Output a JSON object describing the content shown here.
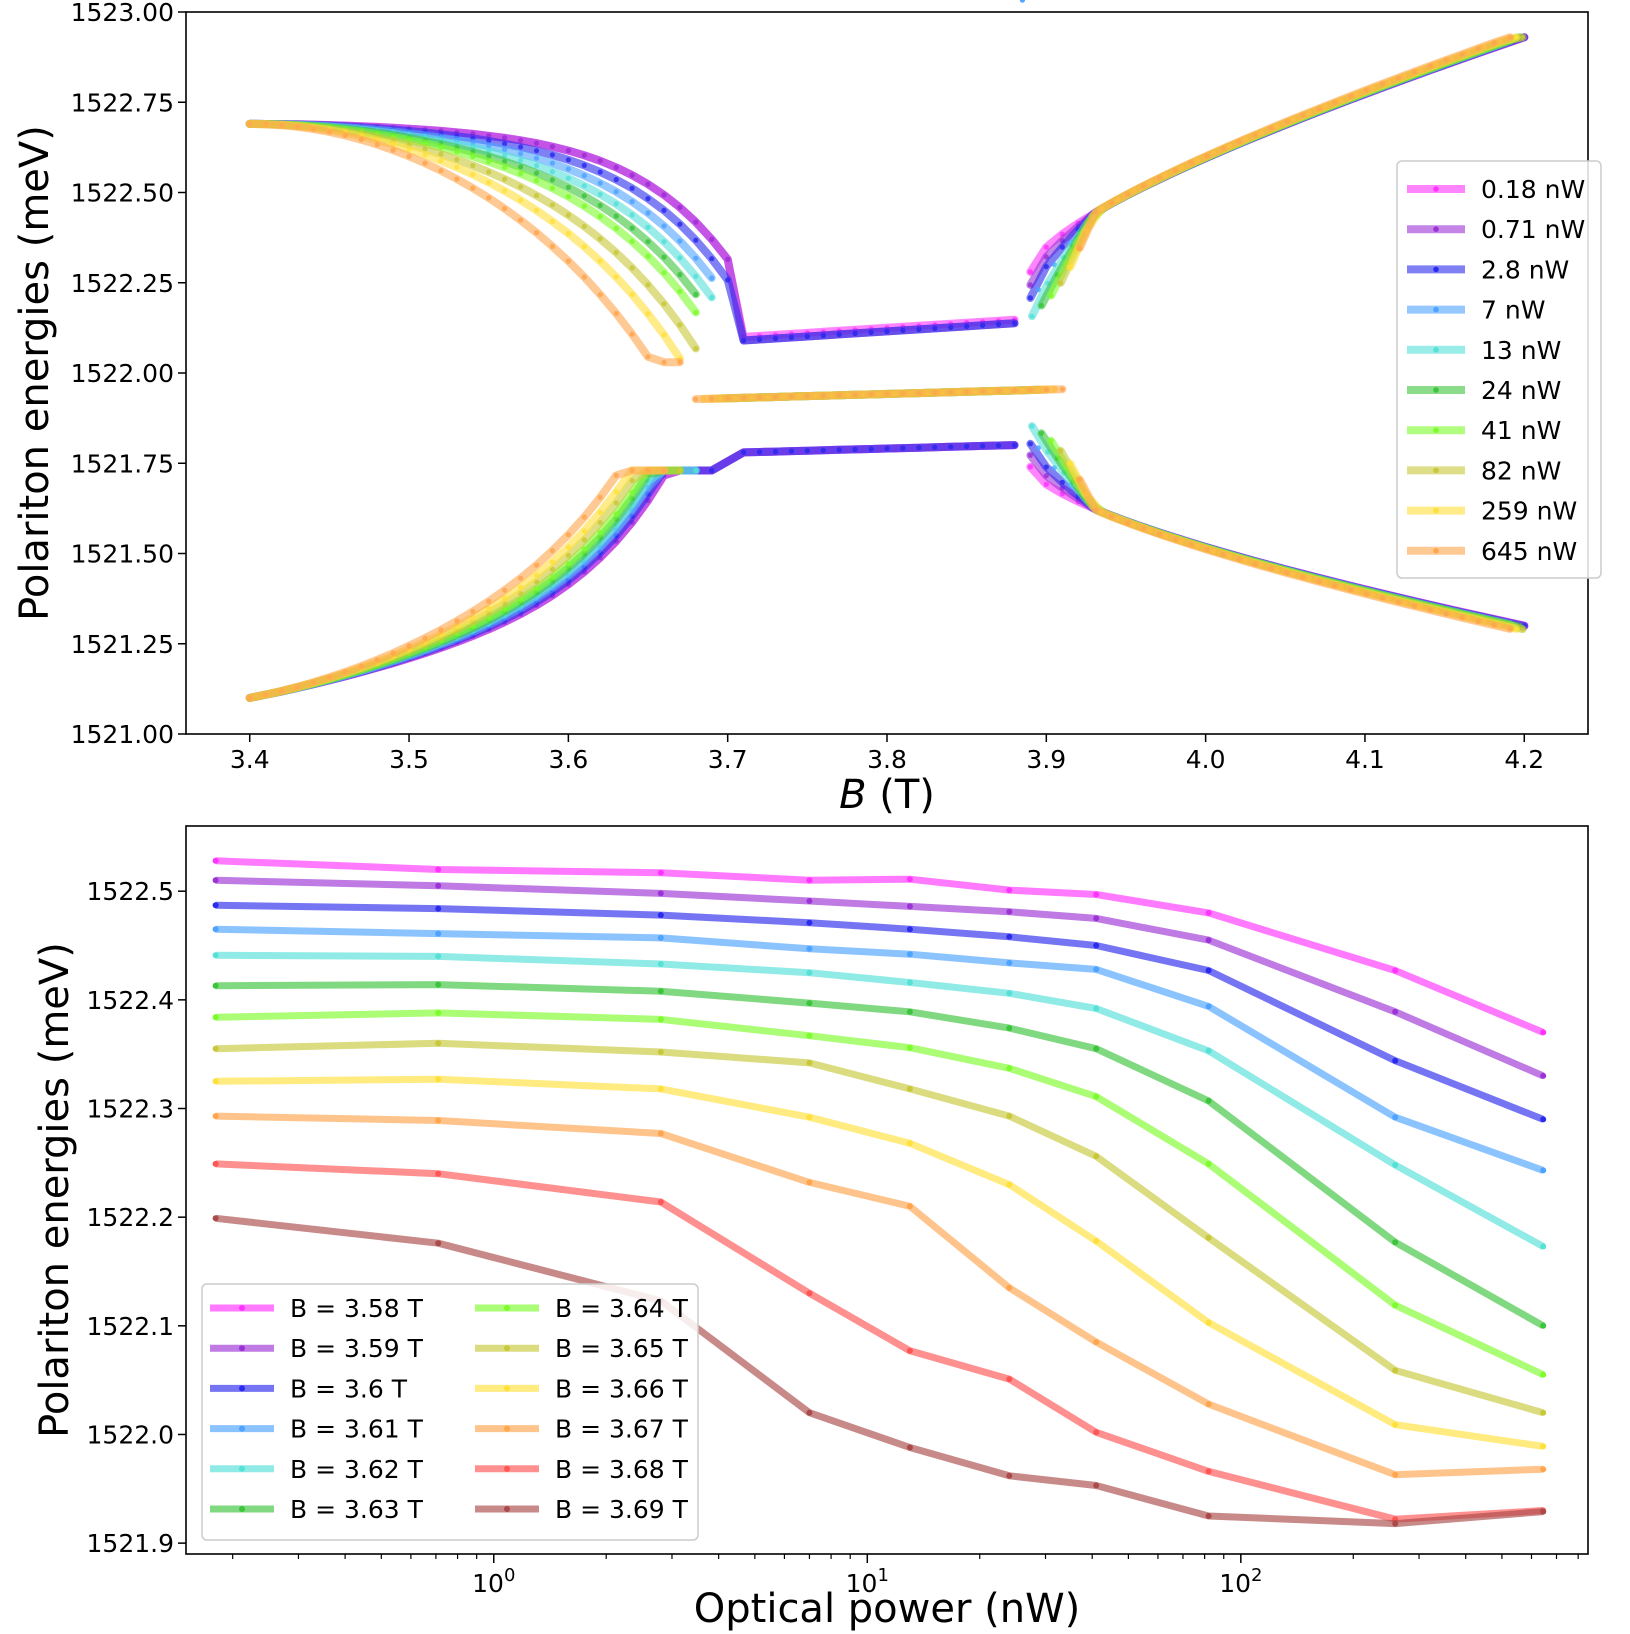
{
  "chart_data": [
    {
      "type": "line",
      "xlabel": "B (T)",
      "ylabel": "Polariton energies (meV)",
      "xlim": [
        3.36,
        4.24
      ],
      "ylim": [
        1521.0,
        1523.0
      ],
      "xticks": [
        "3.4",
        "3.5",
        "3.6",
        "3.7",
        "3.8",
        "3.9",
        "4.0",
        "4.1",
        "4.2"
      ],
      "yticks": [
        "1521.00",
        "1521.25",
        "1521.50",
        "1521.75",
        "1522.00",
        "1522.25",
        "1522.50",
        "1522.75",
        "1523.00"
      ],
      "legend_position": "right",
      "series": [
        {
          "name": "0.18 nW",
          "color": "#ff33ff",
          "transition": 3.705,
          "shift": 0.0
        },
        {
          "name": "0.71 nW",
          "color": "#9c33d6",
          "transition": 3.705,
          "shift": 0.0
        },
        {
          "name": "2.8 nW",
          "color": "#2b2bee",
          "transition": 3.7,
          "shift": 0.005
        },
        {
          "name": "7 nW",
          "color": "#4da3ff",
          "transition": 3.695,
          "shift": 0.01
        },
        {
          "name": "13 nW",
          "color": "#55e0d8",
          "transition": 3.69,
          "shift": 0.015
        },
        {
          "name": "24 nW",
          "color": "#3cc43c",
          "transition": 3.685,
          "shift": 0.02
        },
        {
          "name": "41 nW",
          "color": "#7cfc2a",
          "transition": 3.685,
          "shift": 0.025
        },
        {
          "name": "82 nW",
          "color": "#c8c83a",
          "transition": 3.68,
          "shift": 0.035
        },
        {
          "name": "259 nW",
          "color": "#ffe03a",
          "transition": 3.675,
          "shift": 0.045
        },
        {
          "name": "645 nW",
          "color": "#ffa54d",
          "transition": 3.67,
          "shift": 0.06
        }
      ]
    },
    {
      "type": "line",
      "xlabel": "Optical power (nW)",
      "ylabel": "Polariton energies (meV)",
      "xscale": "log",
      "xlim": [
        0.15,
        850
      ],
      "ylim": [
        1521.89,
        1522.56
      ],
      "xticks": [
        {
          "base": "10",
          "exp": "0",
          "value": 1
        },
        {
          "base": "10",
          "exp": "1",
          "value": 10
        },
        {
          "base": "10",
          "exp": "2",
          "value": 100
        }
      ],
      "yticks": [
        "1521.9",
        "1522.0",
        "1522.1",
        "1522.2",
        "1522.3",
        "1522.4",
        "1522.5"
      ],
      "legend_position": "lower left",
      "x": [
        0.18,
        0.71,
        2.8,
        7,
        13,
        24,
        41,
        82,
        259,
        645
      ],
      "series": [
        {
          "name": "B = 3.58 T",
          "color": "#ff33ff",
          "values": [
            1522.528,
            1522.52,
            1522.517,
            1522.51,
            1522.511,
            1522.501,
            1522.497,
            1522.48,
            1522.427,
            1522.37
          ]
        },
        {
          "name": "B = 3.59 T",
          "color": "#9c33d6",
          "values": [
            1522.51,
            1522.505,
            1522.498,
            1522.491,
            1522.486,
            1522.481,
            1522.475,
            1522.455,
            1522.389,
            1522.33
          ]
        },
        {
          "name": "B = 3.6 T",
          "color": "#2b2bee",
          "values": [
            1522.487,
            1522.484,
            1522.478,
            1522.471,
            1522.465,
            1522.458,
            1522.45,
            1522.427,
            1522.344,
            1522.29
          ]
        },
        {
          "name": "B = 3.61 T",
          "color": "#4da3ff",
          "values": [
            1522.465,
            1522.461,
            1522.457,
            1522.447,
            1522.442,
            1522.434,
            1522.428,
            1522.394,
            1522.292,
            1522.243
          ]
        },
        {
          "name": "B = 3.62 T",
          "color": "#55e0d8",
          "values": [
            1522.441,
            1522.44,
            1522.433,
            1522.425,
            1522.416,
            1522.406,
            1522.392,
            1522.353,
            1522.248,
            1522.173
          ]
        },
        {
          "name": "B = 3.63 T",
          "color": "#3cc43c",
          "values": [
            1522.413,
            1522.414,
            1522.408,
            1522.397,
            1522.389,
            1522.374,
            1522.355,
            1522.307,
            1522.177,
            1522.1
          ]
        },
        {
          "name": "B = 3.64 T",
          "color": "#7cfc2a",
          "values": [
            1522.384,
            1522.388,
            1522.382,
            1522.367,
            1522.356,
            1522.337,
            1522.311,
            1522.249,
            1522.119,
            1522.055
          ]
        },
        {
          "name": "B = 3.65 T",
          "color": "#c8c83a",
          "values": [
            1522.355,
            1522.36,
            1522.352,
            1522.342,
            1522.318,
            1522.293,
            1522.256,
            1522.181,
            1522.059,
            1522.02
          ]
        },
        {
          "name": "B = 3.66 T",
          "color": "#ffe03a",
          "values": [
            1522.325,
            1522.327,
            1522.318,
            1522.292,
            1522.268,
            1522.23,
            1522.178,
            1522.103,
            1522.009,
            1521.989
          ]
        },
        {
          "name": "B = 3.67 T",
          "color": "#ffa54d",
          "values": [
            1522.293,
            1522.289,
            1522.277,
            1522.232,
            1522.21,
            1522.135,
            1522.085,
            1522.028,
            1521.963,
            1521.968
          ]
        },
        {
          "name": "B = 3.68 T",
          "color": "#ff5555",
          "values": [
            1522.249,
            1522.24,
            1522.214,
            1522.13,
            1522.077,
            1522.051,
            1522.002,
            1521.966,
            1521.922,
            1521.93
          ]
        },
        {
          "name": "B = 3.69 T",
          "color": "#aa4a4a",
          "values": [
            1522.199,
            1522.176,
            1522.123,
            1522.02,
            1521.988,
            1521.962,
            1521.953,
            1521.925,
            1521.918,
            1521.929
          ]
        }
      ]
    }
  ]
}
